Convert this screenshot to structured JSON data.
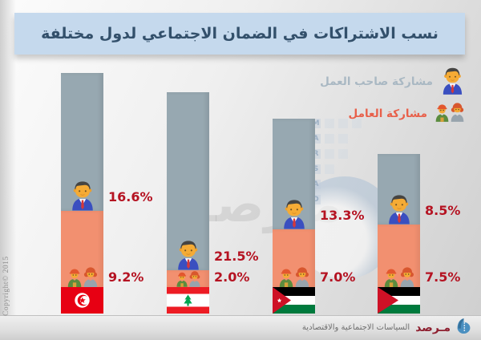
{
  "title": "نسب الاشتراكات في الضمان الاجتماعي لدول مختلفة",
  "legend": {
    "employer_label": "مشاركة صاحب العمل",
    "worker_label": "مشاركة العامل"
  },
  "chart_data": {
    "type": "bar",
    "stacked": true,
    "orientation": "vertical",
    "unit": "percent",
    "categories": [
      "Tunisia",
      "Lebanon",
      "Jordan",
      "Palestine"
    ],
    "flags": [
      "tunisia",
      "lebanon",
      "jordan",
      "palestine"
    ],
    "series": [
      {
        "name": "مشاركة صاحب العمل",
        "key": "employer",
        "color": "#97a8b1",
        "values": [
          16.6,
          21.5,
          13.3,
          8.5
        ],
        "labels": [
          "16.6%",
          "21.5%",
          "13.3%",
          "8.5%"
        ]
      },
      {
        "name": "مشاركة العامل",
        "key": "worker",
        "color": "#f29070",
        "values": [
          9.2,
          2.0,
          7.0,
          7.5
        ],
        "labels": [
          "9.2%",
          "2.0%",
          "7.0%",
          "7.5%"
        ]
      }
    ],
    "value_label_color": "#b51322",
    "legend_position": "top-right",
    "axes": "none"
  },
  "watermarks": {
    "arabic_text": "مـرصـد",
    "vertical_letters": [
      "M",
      "A",
      "R",
      "S",
      "A",
      "D"
    ]
  },
  "footer": {
    "org_name": "مـرصد",
    "tagline": "السياسات الاجتماعية والاقتصادية"
  },
  "copyright": "Copyright© 2015",
  "colors": {
    "banner_bg": "#c5d9ed",
    "title_text": "#33506b",
    "employer_segment": "#97a8b1",
    "worker_segment": "#f29070",
    "value_label": "#b51322",
    "legend_employer_text": "#a9b8c3",
    "legend_worker_text": "#e8604a"
  }
}
